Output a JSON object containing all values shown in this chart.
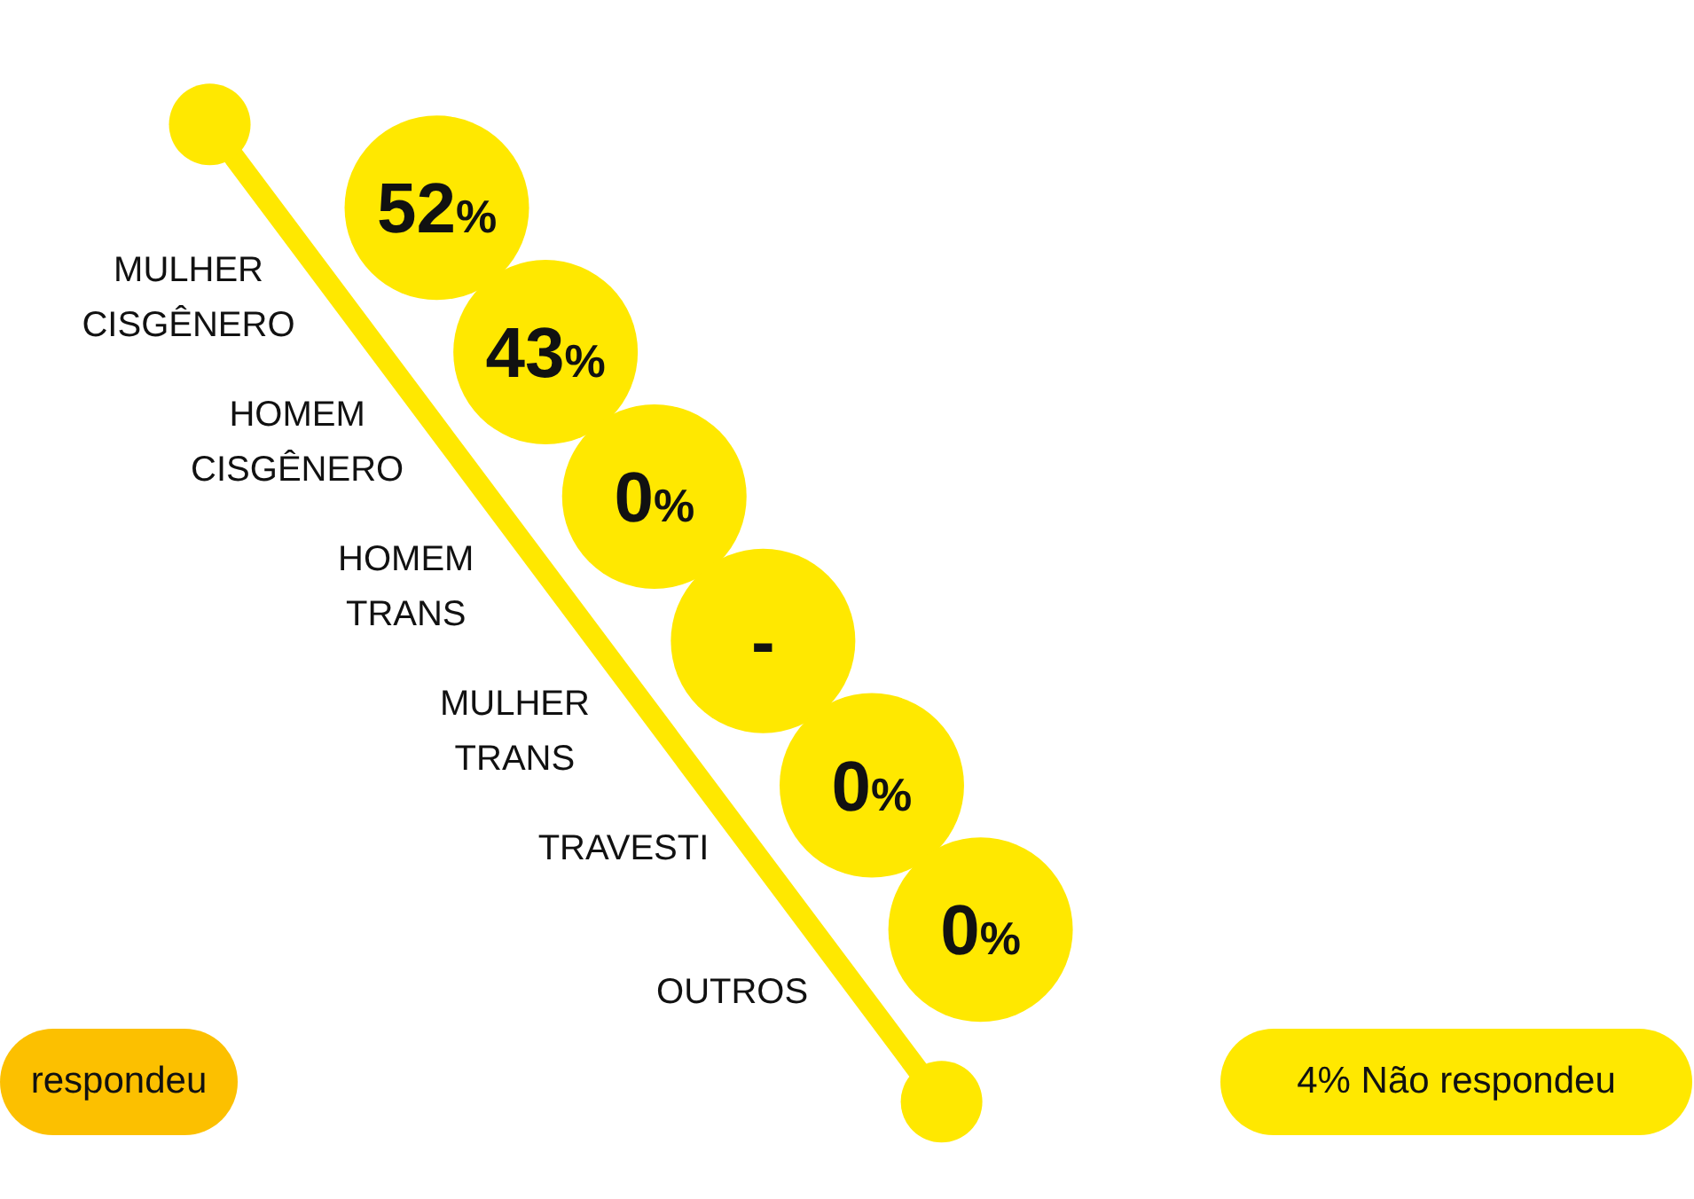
{
  "chart_data": {
    "type": "other",
    "categories": [
      "MULHER CISGÊNERO",
      "HOMEM CISGÊNERO",
      "HOMEM TRANS",
      "MULHER TRANS",
      "TRAVESTI",
      "OUTROS"
    ],
    "values": [
      52,
      43,
      0,
      null,
      0,
      0
    ],
    "value_labels": [
      "52%",
      "43%",
      "0%",
      "-",
      "0%",
      "0%"
    ],
    "color": "#ffe800",
    "legend": false,
    "annotations": [
      "4% Não respondeu",
      "respondeu"
    ]
  }
}
